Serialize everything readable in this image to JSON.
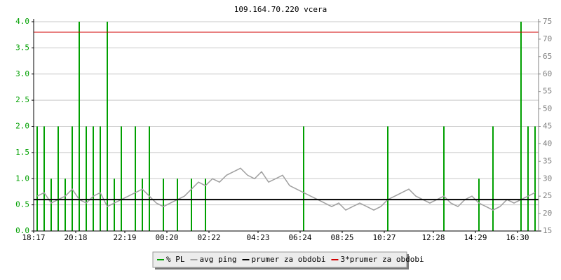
{
  "chart_data": {
    "type": "line",
    "title": "109.164.70.220 vcera",
    "categories": [
      "18:17",
      null,
      null,
      null,
      null,
      null,
      "20:18",
      null,
      null,
      null,
      null,
      null,
      null,
      "22:19",
      null,
      null,
      null,
      null,
      null,
      "00:20",
      null,
      null,
      null,
      null,
      null,
      "02:22",
      null,
      null,
      null,
      null,
      null,
      null,
      "04:23",
      null,
      null,
      null,
      null,
      null,
      "06:24",
      null,
      null,
      null,
      null,
      null,
      "08:25",
      null,
      null,
      null,
      null,
      null,
      "10:27",
      null,
      null,
      null,
      null,
      null,
      null,
      "12:28",
      null,
      null,
      null,
      null,
      null,
      "14:29",
      null,
      null,
      null,
      null,
      null,
      "16:30",
      null,
      null
    ],
    "series": [
      {
        "name": "% PL",
        "color": "#00a000",
        "style": "spike",
        "axis": "y",
        "values": [
          2,
          2,
          1,
          2,
          1,
          2,
          4,
          2,
          2,
          2,
          4,
          1,
          2,
          0,
          2,
          1,
          2,
          0,
          1,
          0,
          1,
          0,
          1,
          0,
          1,
          0,
          0,
          0,
          0,
          0,
          0,
          0,
          0,
          0,
          0,
          0,
          0,
          0,
          2,
          0,
          0,
          0,
          0,
          0,
          0,
          0,
          0,
          0,
          0,
          0,
          2,
          0,
          0,
          0,
          0,
          0,
          0,
          0,
          2,
          0,
          0,
          0,
          0,
          1,
          0,
          2,
          0,
          0,
          0,
          4,
          2,
          2
        ]
      },
      {
        "name": "avg ping",
        "color": "#a0a0a0",
        "style": "line",
        "axis": "y2",
        "values": [
          25,
          26,
          23,
          24,
          25,
          27,
          24,
          23,
          25,
          26,
          22,
          23,
          24,
          25,
          26,
          27,
          25,
          23,
          22,
          23,
          24,
          25,
          27,
          29,
          28,
          30,
          29,
          31,
          32,
          33,
          31,
          30,
          32,
          29,
          30,
          31,
          28,
          27,
          26,
          25,
          24,
          23,
          22,
          23,
          21,
          22,
          23,
          22,
          21,
          22,
          24,
          25,
          26,
          27,
          25,
          24,
          23,
          24,
          25,
          23,
          22,
          24,
          25,
          23,
          22,
          21,
          22,
          24,
          23,
          24,
          25,
          26
        ]
      },
      {
        "name": "prumer za obdobi",
        "color": "#000000",
        "style": "hline",
        "axis": "y2",
        "value": 24
      },
      {
        "name": "3*prumer za obdobi",
        "color": "#d00000",
        "style": "hline",
        "axis": "y2",
        "value": 72
      }
    ],
    "ylim": [
      0,
      4
    ],
    "yticks": [
      {
        "value": 0,
        "label": "0.0"
      },
      0.5,
      {
        "value": 1,
        "label": "1.0"
      },
      1.5,
      {
        "value": 2,
        "label": "2.0"
      },
      2.5,
      {
        "value": 3,
        "label": "3.0"
      },
      3.5,
      {
        "value": 4,
        "label": "4.0"
      }
    ],
    "y2lim": [
      15,
      75
    ],
    "y2ticks": [
      15,
      20,
      25,
      30,
      35,
      40,
      45,
      50,
      55,
      60,
      65,
      70,
      75
    ],
    "grid": true
  }
}
